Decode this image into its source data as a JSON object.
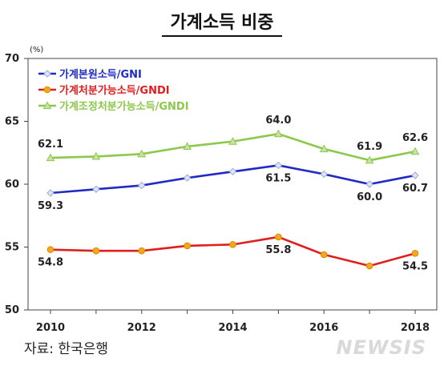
{
  "title": "가계소득 비중",
  "source": "자료: 한국은행",
  "watermark": "NEWSIS",
  "chart_data": {
    "type": "line",
    "y_unit": "(%)",
    "ylim": [
      50,
      70
    ],
    "yticks": [
      50,
      55,
      60,
      65,
      70
    ],
    "x": [
      2010,
      2011,
      2012,
      2013,
      2014,
      2015,
      2016,
      2017,
      2018
    ],
    "xtick_labels": [
      "2010",
      "2012",
      "2014",
      "2016",
      "2018"
    ],
    "legend_position": "top-left",
    "grid": false,
    "series": [
      {
        "name": "가계본원소득/GNI",
        "color": "#1f2bc4",
        "marker": "diamond",
        "values": [
          59.3,
          59.6,
          59.9,
          60.5,
          61.0,
          61.5,
          60.8,
          60.0,
          60.7
        ],
        "labels": [
          {
            "x": 2010,
            "text": "59.3",
            "pos": "below"
          },
          {
            "x": 2015,
            "text": "61.5",
            "pos": "below"
          },
          {
            "x": 2017,
            "text": "60.0",
            "pos": "below"
          },
          {
            "x": 2018,
            "text": "60.7",
            "pos": "below"
          }
        ]
      },
      {
        "name": "가계처분가능소득/GNDI",
        "color": "#e01e1e",
        "marker": "circle",
        "values": [
          54.8,
          54.7,
          54.7,
          55.1,
          55.2,
          55.8,
          54.4,
          53.5,
          54.5
        ],
        "labels": [
          {
            "x": 2010,
            "text": "54.8",
            "pos": "below"
          },
          {
            "x": 2015,
            "text": "55.8",
            "pos": "below"
          },
          {
            "x": 2018,
            "text": "54.5",
            "pos": "below"
          }
        ]
      },
      {
        "name": "가계조정처분가능소득/GNDI",
        "color": "#8cc84b",
        "marker": "triangle",
        "values": [
          62.1,
          62.2,
          62.4,
          63.0,
          63.4,
          64.0,
          62.8,
          61.9,
          62.6
        ],
        "labels": [
          {
            "x": 2010,
            "text": "62.1",
            "pos": "above"
          },
          {
            "x": 2015,
            "text": "64.0",
            "pos": "above"
          },
          {
            "x": 2017,
            "text": "61.9",
            "pos": "above"
          },
          {
            "x": 2018,
            "text": "62.6",
            "pos": "above"
          }
        ]
      }
    ]
  }
}
